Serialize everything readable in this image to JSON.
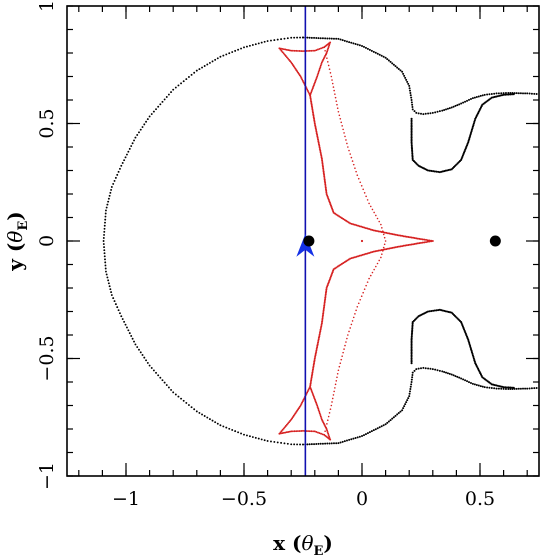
{
  "chart_data": {
    "type": "scatter",
    "title": "",
    "xlabel": {
      "prefix": "x (",
      "symbol": "θ",
      "sub": "E",
      "suffix": ")"
    },
    "ylabel": {
      "prefix": "y (",
      "symbol": "θ",
      "sub": "E",
      "suffix": ")"
    },
    "xlim": [
      -1.25,
      0.75
    ],
    "ylim": [
      -1.0,
      1.0
    ],
    "x_ticks": [
      {
        "value": -1.0,
        "label": "−1"
      },
      {
        "value": -0.5,
        "label": "−0.5"
      },
      {
        "value": 0.0,
        "label": "0"
      },
      {
        "value": 0.5,
        "label": "0.5"
      }
    ],
    "y_ticks": [
      {
        "value": -1.0,
        "label": "−1"
      },
      {
        "value": -0.5,
        "label": "−0.5"
      },
      {
        "value": 0.0,
        "label": "0"
      },
      {
        "value": 0.5,
        "label": "0.5"
      },
      {
        "value": 1.0,
        "label": "1"
      }
    ],
    "x_minor_step": 0.1,
    "y_minor_step": 0.1,
    "grid": false,
    "colors": {
      "critical_curve": "#000000",
      "caustic": "#d62020",
      "trajectory": "#1010b0",
      "arrow": "#1430e6",
      "lens": "#000000"
    },
    "critical_curve": [
      [
        -0.25,
        0.866
      ],
      [
        -0.3,
        0.865
      ],
      [
        -0.4,
        0.851
      ],
      [
        -0.5,
        0.824
      ],
      [
        -0.6,
        0.784
      ],
      [
        -0.7,
        0.725
      ],
      [
        -0.8,
        0.644
      ],
      [
        -0.9,
        0.53
      ],
      [
        -0.96,
        0.44
      ],
      [
        -1.02,
        0.32
      ],
      [
        -1.06,
        0.23
      ],
      [
        -1.085,
        0.13
      ],
      [
        -1.095,
        0.0
      ],
      [
        -1.085,
        -0.13
      ],
      [
        -1.06,
        -0.23
      ],
      [
        -1.02,
        -0.32
      ],
      [
        -0.96,
        -0.44
      ],
      [
        -0.9,
        -0.53
      ],
      [
        -0.8,
        -0.644
      ],
      [
        -0.7,
        -0.725
      ],
      [
        -0.6,
        -0.784
      ],
      [
        -0.5,
        -0.824
      ],
      [
        -0.4,
        -0.851
      ],
      [
        -0.3,
        -0.865
      ],
      [
        -0.25,
        -0.866
      ]
    ],
    "critical_curve_right_upper": [
      [
        -0.25,
        0.866
      ],
      [
        -0.1,
        0.86
      ],
      [
        0.0,
        0.83
      ],
      [
        0.1,
        0.78
      ],
      [
        0.17,
        0.72
      ],
      [
        0.2,
        0.66
      ],
      [
        0.21,
        0.6
      ],
      [
        0.215,
        0.56
      ],
      [
        0.23,
        0.545
      ],
      [
        0.26,
        0.54
      ],
      [
        0.3,
        0.545
      ],
      [
        0.34,
        0.555
      ],
      [
        0.38,
        0.568
      ],
      [
        0.42,
        0.585
      ],
      [
        0.47,
        0.608
      ],
      [
        0.52,
        0.622
      ],
      [
        0.57,
        0.628
      ],
      [
        0.62,
        0.63
      ],
      [
        0.7,
        0.628
      ],
      [
        0.75,
        0.625
      ]
    ],
    "critical_curve_right_lower": [
      [
        -0.25,
        -0.866
      ],
      [
        -0.1,
        -0.86
      ],
      [
        0.0,
        -0.83
      ],
      [
        0.1,
        -0.78
      ],
      [
        0.17,
        -0.72
      ],
      [
        0.2,
        -0.66
      ],
      [
        0.21,
        -0.6
      ],
      [
        0.215,
        -0.56
      ],
      [
        0.23,
        -0.545
      ],
      [
        0.26,
        -0.54
      ],
      [
        0.3,
        -0.545
      ],
      [
        0.34,
        -0.555
      ],
      [
        0.38,
        -0.568
      ],
      [
        0.42,
        -0.585
      ],
      [
        0.47,
        -0.608
      ],
      [
        0.52,
        -0.622
      ],
      [
        0.57,
        -0.628
      ],
      [
        0.62,
        -0.63
      ],
      [
        0.7,
        -0.628
      ],
      [
        0.75,
        -0.625
      ]
    ],
    "critical_curve_inner_upper": [
      [
        0.21,
        0.52
      ],
      [
        0.21,
        0.42
      ],
      [
        0.215,
        0.345
      ],
      [
        0.24,
        0.32
      ],
      [
        0.28,
        0.3
      ],
      [
        0.33,
        0.293
      ],
      [
        0.38,
        0.305
      ],
      [
        0.42,
        0.345
      ],
      [
        0.45,
        0.42
      ],
      [
        0.48,
        0.52
      ],
      [
        0.51,
        0.58
      ],
      [
        0.55,
        0.61
      ],
      [
        0.6,
        0.622
      ],
      [
        0.65,
        0.625
      ]
    ],
    "critical_curve_inner_lower": [
      [
        0.21,
        -0.52
      ],
      [
        0.21,
        -0.42
      ],
      [
        0.215,
        -0.345
      ],
      [
        0.24,
        -0.32
      ],
      [
        0.28,
        -0.3
      ],
      [
        0.33,
        -0.293
      ],
      [
        0.38,
        -0.305
      ],
      [
        0.42,
        -0.345
      ],
      [
        0.45,
        -0.42
      ],
      [
        0.48,
        -0.52
      ],
      [
        0.51,
        -0.58
      ],
      [
        0.55,
        -0.61
      ],
      [
        0.6,
        -0.622
      ],
      [
        0.65,
        -0.625
      ]
    ],
    "caustic_upper_triangle": [
      [
        -0.35,
        0.82
      ],
      [
        -0.3,
        0.81
      ],
      [
        -0.25,
        0.808
      ],
      [
        -0.2,
        0.81
      ],
      [
        -0.16,
        0.825
      ],
      [
        -0.135,
        0.845
      ],
      [
        -0.15,
        0.8
      ],
      [
        -0.17,
        0.76
      ],
      [
        -0.19,
        0.7
      ],
      [
        -0.22,
        0.62
      ],
      [
        -0.26,
        0.7
      ],
      [
        -0.3,
        0.76
      ],
      [
        -0.35,
        0.82
      ]
    ],
    "caustic_lower_triangle": [
      [
        -0.35,
        -0.82
      ],
      [
        -0.3,
        -0.81
      ],
      [
        -0.25,
        -0.808
      ],
      [
        -0.2,
        -0.81
      ],
      [
        -0.16,
        -0.825
      ],
      [
        -0.135,
        -0.845
      ],
      [
        -0.15,
        -0.8
      ],
      [
        -0.17,
        -0.76
      ],
      [
        -0.19,
        -0.7
      ],
      [
        -0.22,
        -0.62
      ],
      [
        -0.26,
        -0.7
      ],
      [
        -0.3,
        -0.76
      ],
      [
        -0.35,
        -0.82
      ]
    ],
    "caustic_central": [
      [
        -0.22,
        0.62
      ],
      [
        -0.2,
        0.5
      ],
      [
        -0.17,
        0.35
      ],
      [
        -0.15,
        0.2
      ],
      [
        -0.12,
        0.12
      ],
      [
        -0.05,
        0.075
      ],
      [
        0.05,
        0.045
      ],
      [
        0.15,
        0.025
      ],
      [
        0.25,
        0.008
      ],
      [
        0.3,
        0.0
      ],
      [
        0.25,
        -0.008
      ],
      [
        0.15,
        -0.025
      ],
      [
        0.05,
        -0.045
      ],
      [
        -0.05,
        -0.075
      ],
      [
        -0.12,
        -0.12
      ],
      [
        -0.15,
        -0.2
      ],
      [
        -0.17,
        -0.35
      ],
      [
        -0.2,
        -0.5
      ],
      [
        -0.22,
        -0.62
      ]
    ],
    "caustic_inner_fold": [
      [
        -0.16,
        0.825
      ],
      [
        -0.13,
        0.7
      ],
      [
        -0.1,
        0.55
      ],
      [
        -0.06,
        0.4
      ],
      [
        -0.02,
        0.28
      ],
      [
        0.03,
        0.16
      ],
      [
        0.08,
        0.07
      ],
      [
        0.1,
        0.0
      ],
      [
        0.08,
        -0.07
      ],
      [
        0.03,
        -0.16
      ],
      [
        -0.02,
        -0.28
      ],
      [
        -0.06,
        -0.4
      ],
      [
        -0.1,
        -0.55
      ],
      [
        -0.13,
        -0.7
      ],
      [
        -0.16,
        -0.825
      ]
    ],
    "caustic_center_point": [
      0.0,
      0.0
    ],
    "source_trajectory_x": -0.24,
    "source_arrow": {
      "x": -0.24,
      "y": -0.05,
      "direction": "up"
    },
    "lens_positions": [
      [
        -0.225,
        0.0
      ],
      [
        0.565,
        0.0
      ]
    ]
  }
}
